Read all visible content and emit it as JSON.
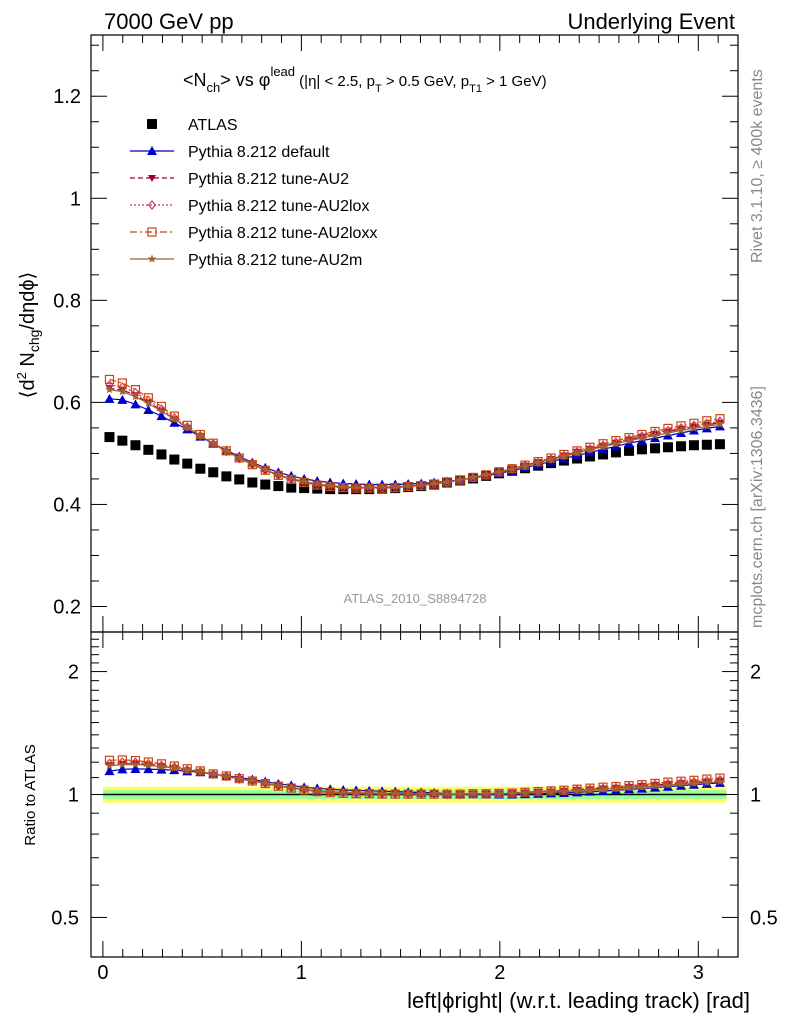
{
  "header": {
    "left": "7000 GeV pp",
    "right": "Underlying Event"
  },
  "side_labels": {
    "rivet": "Rivet 3.1.10, ≥ 400k events",
    "mcplots": "mcplots.cern.ch [arXiv:1306.3436]"
  },
  "chart_data": [
    {
      "type": "scatter",
      "panel": "main",
      "title": "<Nch> vs φlead (|η| < 2.5, pT > 0.5 GeV, pT1 > 1 GeV)",
      "title_parts": {
        "lead": "<N",
        "sub_ch": "ch",
        "mid": "> vs φ",
        "sup_lead": "lead",
        "cuts_a": " (|η| < 2.5, p",
        "sub_t": "T",
        "cuts_b": " > 0.5 GeV, p",
        "sub_t1": "T1",
        "cuts_c": " > 1 GeV)"
      },
      "ylabel": "⟨d² Nchg/dηdϕ⟩",
      "ylabel_parts": {
        "open": "⟨d",
        "sup2": "2",
        "n": " N",
        "sub_chg": "chg",
        "rest": "/dηdϕ⟩"
      },
      "xlim": [
        -0.06,
        3.2
      ],
      "ylim": [
        0.15,
        1.32
      ],
      "yticks": [
        0.2,
        0.4,
        0.6,
        0.8,
        1,
        1.2
      ],
      "ytick_labels": [
        "0.2",
        "0.4",
        "0.6",
        "0.8",
        "1",
        "1.2"
      ],
      "watermark": "ATLAS_2010_S8894728",
      "x": [
        0.033,
        0.098,
        0.164,
        0.229,
        0.295,
        0.36,
        0.425,
        0.491,
        0.556,
        0.622,
        0.687,
        0.753,
        0.818,
        0.884,
        0.949,
        1.014,
        1.08,
        1.145,
        1.211,
        1.276,
        1.342,
        1.407,
        1.473,
        1.538,
        1.604,
        1.669,
        1.734,
        1.8,
        1.865,
        1.931,
        1.996,
        2.062,
        2.127,
        2.193,
        2.258,
        2.323,
        2.389,
        2.454,
        2.52,
        2.585,
        2.651,
        2.716,
        2.782,
        2.847,
        2.913,
        2.978,
        3.043,
        3.109
      ],
      "series": [
        {
          "name": "ATLAS",
          "color": "#000000",
          "marker": "filled-square",
          "line": "none",
          "values": [
            0.532,
            0.525,
            0.516,
            0.507,
            0.498,
            0.488,
            0.48,
            0.47,
            0.463,
            0.455,
            0.449,
            0.443,
            0.439,
            0.436,
            0.433,
            0.432,
            0.431,
            0.43,
            0.43,
            0.43,
            0.43,
            0.431,
            0.432,
            0.434,
            0.436,
            0.439,
            0.443,
            0.447,
            0.451,
            0.456,
            0.461,
            0.466,
            0.471,
            0.476,
            0.481,
            0.486,
            0.49,
            0.494,
            0.498,
            0.502,
            0.505,
            0.508,
            0.51,
            0.512,
            0.514,
            0.516,
            0.517,
            0.518
          ]
        },
        {
          "name": "Pythia 8.212 default",
          "color": "#0000cc",
          "marker": "filled-triangle-up",
          "line": "solid",
          "values": [
            0.607,
            0.605,
            0.596,
            0.585,
            0.573,
            0.56,
            0.547,
            0.533,
            0.519,
            0.506,
            0.494,
            0.482,
            0.472,
            0.463,
            0.456,
            0.45,
            0.446,
            0.443,
            0.441,
            0.44,
            0.439,
            0.439,
            0.439,
            0.44,
            0.441,
            0.443,
            0.445,
            0.448,
            0.452,
            0.456,
            0.461,
            0.466,
            0.472,
            0.478,
            0.484,
            0.49,
            0.496,
            0.502,
            0.508,
            0.514,
            0.52,
            0.525,
            0.53,
            0.535,
            0.54,
            0.545,
            0.549,
            0.553
          ]
        },
        {
          "name": "Pythia 8.212 tune-AU2",
          "color": "#990033",
          "marker": "filled-triangle-down",
          "line": "dashed",
          "values": [
            0.628,
            0.624,
            0.614,
            0.6,
            0.584,
            0.567,
            0.55,
            0.534,
            0.518,
            0.503,
            0.49,
            0.478,
            0.467,
            0.457,
            0.45,
            0.444,
            0.439,
            0.436,
            0.434,
            0.433,
            0.433,
            0.433,
            0.434,
            0.436,
            0.438,
            0.441,
            0.444,
            0.448,
            0.453,
            0.458,
            0.464,
            0.47,
            0.476,
            0.483,
            0.489,
            0.496,
            0.503,
            0.509,
            0.515,
            0.521,
            0.527,
            0.533,
            0.538,
            0.543,
            0.548,
            0.552,
            0.556,
            0.56
          ]
        },
        {
          "name": "Pythia 8.212 tune-AU2lox",
          "color": "#cc3355",
          "marker": "open-diamond",
          "line": "dotted",
          "values": [
            0.634,
            0.63,
            0.619,
            0.604,
            0.587,
            0.57,
            0.552,
            0.535,
            0.519,
            0.504,
            0.49,
            0.478,
            0.467,
            0.457,
            0.449,
            0.443,
            0.438,
            0.435,
            0.433,
            0.432,
            0.432,
            0.432,
            0.433,
            0.435,
            0.437,
            0.44,
            0.443,
            0.447,
            0.452,
            0.457,
            0.463,
            0.469,
            0.476,
            0.482,
            0.489,
            0.496,
            0.503,
            0.509,
            0.516,
            0.522,
            0.528,
            0.534,
            0.54,
            0.545,
            0.55,
            0.555,
            0.559,
            0.563
          ]
        },
        {
          "name": "Pythia 8.212 tune-AU2loxx",
          "color": "#cc4411",
          "marker": "open-square",
          "line": "dashdot",
          "values": [
            0.645,
            0.638,
            0.625,
            0.609,
            0.592,
            0.573,
            0.555,
            0.537,
            0.52,
            0.505,
            0.491,
            0.478,
            0.467,
            0.457,
            0.449,
            0.443,
            0.438,
            0.435,
            0.433,
            0.432,
            0.432,
            0.432,
            0.433,
            0.435,
            0.437,
            0.44,
            0.444,
            0.448,
            0.453,
            0.458,
            0.464,
            0.47,
            0.477,
            0.484,
            0.491,
            0.498,
            0.505,
            0.512,
            0.519,
            0.525,
            0.531,
            0.537,
            0.543,
            0.549,
            0.554,
            0.559,
            0.564,
            0.568
          ]
        },
        {
          "name": "Pythia 8.212 tune-AU2m",
          "color": "#996633",
          "marker": "filled-star",
          "line": "solid",
          "values": [
            0.625,
            0.621,
            0.611,
            0.598,
            0.583,
            0.567,
            0.551,
            0.535,
            0.519,
            0.504,
            0.491,
            0.479,
            0.468,
            0.458,
            0.451,
            0.445,
            0.44,
            0.437,
            0.435,
            0.434,
            0.434,
            0.434,
            0.435,
            0.436,
            0.438,
            0.441,
            0.444,
            0.448,
            0.453,
            0.458,
            0.463,
            0.469,
            0.475,
            0.482,
            0.488,
            0.494,
            0.501,
            0.507,
            0.513,
            0.519,
            0.525,
            0.53,
            0.535,
            0.54,
            0.545,
            0.549,
            0.553,
            0.557
          ]
        }
      ]
    },
    {
      "type": "scatter",
      "panel": "ratio",
      "ylabel": "Ratio to ATLAS",
      "xlabel": "left|ϕright| (w.r.t. leading track) [rad]",
      "xlim": [
        -0.06,
        3.2
      ],
      "ylim": [
        0.4,
        2.5
      ],
      "yscale": "log",
      "yticks": [
        0.5,
        1,
        2
      ],
      "ytick_labels": [
        "0.5",
        "1",
        "2"
      ],
      "xticks": [
        0,
        1,
        2,
        3
      ],
      "xtick_labels": [
        "0",
        "1",
        "2",
        "3"
      ],
      "bands": [
        {
          "name": "total uncertainty",
          "color": "#ffff66",
          "lo": 0.955,
          "hi": 1.045
        },
        {
          "name": "stat uncertainty",
          "color": "#99ff99",
          "lo": 0.975,
          "hi": 1.025
        }
      ],
      "reference_line": 1
    }
  ]
}
